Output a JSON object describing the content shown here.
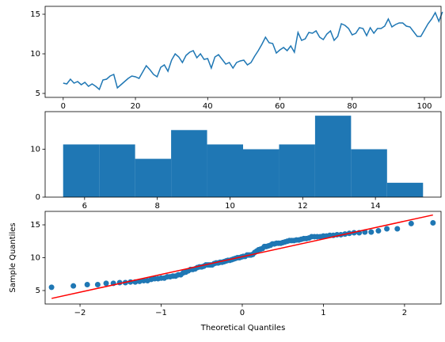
{
  "chart_data": [
    {
      "type": "line",
      "color": "#1f77b4",
      "x": [
        0,
        1,
        2,
        3,
        4,
        5,
        6,
        7,
        8,
        9,
        10,
        11,
        12,
        13,
        14,
        15,
        16,
        17,
        18,
        19,
        20,
        21,
        22,
        23,
        24,
        25,
        26,
        27,
        28,
        29,
        30,
        31,
        32,
        33,
        34,
        35,
        36,
        37,
        38,
        39,
        40,
        41,
        42,
        43,
        44,
        45,
        46,
        47,
        48,
        49,
        50,
        51,
        52,
        53,
        54,
        55,
        56,
        57,
        58,
        59,
        60,
        61,
        62,
        63,
        64,
        65,
        66,
        67,
        68,
        69,
        70,
        71,
        72,
        73,
        74,
        75,
        76,
        77,
        78,
        79,
        80,
        81,
        82,
        83,
        84,
        85,
        86,
        87,
        88,
        89,
        90,
        91,
        92,
        93,
        94,
        95,
        96,
        97,
        98,
        99,
        100,
        101,
        102,
        103,
        104,
        105
      ],
      "values": [
        6.3,
        6.2,
        6.8,
        6.3,
        6.5,
        6.1,
        6.4,
        5.9,
        6.2,
        5.9,
        5.5,
        6.7,
        6.8,
        7.2,
        7.4,
        5.7,
        6.1,
        6.5,
        6.9,
        7.2,
        7.1,
        6.9,
        7.7,
        8.5,
        8.0,
        7.4,
        7.1,
        8.3,
        8.6,
        7.8,
        9.2,
        10.0,
        9.6,
        8.9,
        9.8,
        10.2,
        10.4,
        9.5,
        10.0,
        9.3,
        9.4,
        8.2,
        9.6,
        9.9,
        9.3,
        8.7,
        8.9,
        8.2,
        8.9,
        9.1,
        9.2,
        8.6,
        8.9,
        9.7,
        10.4,
        11.2,
        12.1,
        11.4,
        11.3,
        10.1,
        10.5,
        10.8,
        10.4,
        11.0,
        10.2,
        12.7,
        11.7,
        11.9,
        12.7,
        12.6,
        12.9,
        12.1,
        11.8,
        12.5,
        12.9,
        11.7,
        12.2,
        13.8,
        13.6,
        13.2,
        12.4,
        12.6,
        13.3,
        13.2,
        12.3,
        13.3,
        12.6,
        13.2,
        13.2,
        13.5,
        14.4,
        13.4,
        13.7,
        13.9,
        13.9,
        13.5,
        13.4,
        12.8,
        12.2,
        12.2,
        13.0,
        13.8,
        14.4,
        15.2,
        14.1,
        15.3
      ],
      "xlim": [
        -5,
        104.6
      ],
      "ylim": [
        4.5,
        16
      ],
      "xticks": [
        0,
        20,
        40,
        60,
        80,
        100
      ],
      "yticks": [
        5,
        10,
        15
      ]
    },
    {
      "type": "histogram",
      "color": "#1f77b4",
      "bins": [
        5.41,
        6.4,
        7.39,
        8.38,
        9.37,
        10.36,
        11.35,
        12.34,
        13.33,
        14.32,
        15.31
      ],
      "counts": [
        11,
        11,
        8,
        14,
        11,
        10,
        11,
        17,
        10,
        3
      ],
      "xlim": [
        4.915,
        15.805
      ],
      "ylim": [
        0,
        17.85
      ],
      "xticks": [
        6,
        8,
        10,
        12,
        14
      ],
      "yticks": [
        0,
        10
      ]
    },
    {
      "type": "qq",
      "color": "#1f77b4",
      "xlabel": "Theoretical Quantiles",
      "ylabel": "Sample Quantiles",
      "x": [
        -2.351,
        -2.082,
        -1.911,
        -1.782,
        -1.678,
        -1.589,
        -1.511,
        -1.441,
        -1.378,
        -1.319,
        -1.266,
        -1.215,
        -1.168,
        -1.122,
        -1.079,
        -1.038,
        -0.999,
        -0.961,
        -0.924,
        -0.889,
        -0.855,
        -0.822,
        -0.789,
        -0.758,
        -0.727,
        -0.697,
        -0.667,
        -0.638,
        -0.61,
        -0.582,
        -0.554,
        -0.527,
        -0.5,
        -0.474,
        -0.448,
        -0.422,
        -0.397,
        -0.372,
        -0.347,
        -0.322,
        -0.297,
        -0.273,
        -0.249,
        -0.224,
        -0.2,
        -0.177,
        -0.153,
        -0.129,
        -0.106,
        -0.082,
        -0.059,
        -0.035,
        -0.012,
        0.012,
        0.035,
        0.059,
        0.082,
        0.106,
        0.129,
        0.153,
        0.177,
        0.2,
        0.224,
        0.249,
        0.273,
        0.297,
        0.322,
        0.347,
        0.372,
        0.397,
        0.422,
        0.448,
        0.474,
        0.5,
        0.527,
        0.554,
        0.582,
        0.61,
        0.638,
        0.667,
        0.697,
        0.727,
        0.758,
        0.789,
        0.822,
        0.855,
        0.889,
        0.924,
        0.961,
        0.999,
        1.038,
        1.079,
        1.122,
        1.168,
        1.215,
        1.266,
        1.319,
        1.378,
        1.441,
        1.511,
        1.589,
        1.678,
        1.782,
        1.911,
        2.082,
        2.351
      ],
      "values": [
        5.5,
        5.7,
        5.9,
        5.9,
        6.1,
        6.1,
        6.2,
        6.2,
        6.3,
        6.3,
        6.4,
        6.5,
        6.5,
        6.7,
        6.8,
        6.8,
        6.9,
        6.9,
        7.1,
        7.1,
        7.2,
        7.2,
        7.4,
        7.4,
        7.7,
        7.8,
        8.0,
        8.2,
        8.2,
        8.3,
        8.5,
        8.6,
        8.6,
        8.7,
        8.9,
        8.9,
        8.9,
        8.9,
        9.1,
        9.2,
        9.2,
        9.3,
        9.3,
        9.4,
        9.5,
        9.6,
        9.6,
        9.7,
        9.8,
        9.9,
        10.0,
        10.0,
        10.1,
        10.2,
        10.2,
        10.4,
        10.4,
        10.4,
        10.5,
        10.8,
        11.0,
        11.2,
        11.3,
        11.4,
        11.7,
        11.7,
        11.8,
        11.9,
        12.1,
        12.1,
        12.2,
        12.2,
        12.2,
        12.3,
        12.4,
        12.5,
        12.6,
        12.6,
        12.6,
        12.7,
        12.7,
        12.8,
        12.9,
        12.9,
        13.0,
        13.2,
        13.2,
        13.2,
        13.2,
        13.3,
        13.3,
        13.4,
        13.4,
        13.5,
        13.5,
        13.6,
        13.7,
        13.8,
        13.8,
        13.9,
        13.9,
        14.1,
        14.4,
        14.4,
        15.2,
        15.3
      ],
      "fit_line": {
        "color": "#ff0000",
        "x": [
          -2.35,
          2.35
        ],
        "y": [
          3.8,
          16.5
        ]
      },
      "xlim": [
        -2.43,
        2.45
      ],
      "ylim": [
        2.95,
        17.05
      ],
      "xticks": [
        {
          "value": -2,
          "label": "−2"
        },
        {
          "value": -1,
          "label": "−1"
        },
        0,
        1,
        2
      ],
      "yticks": [
        5,
        10,
        15
      ]
    }
  ]
}
